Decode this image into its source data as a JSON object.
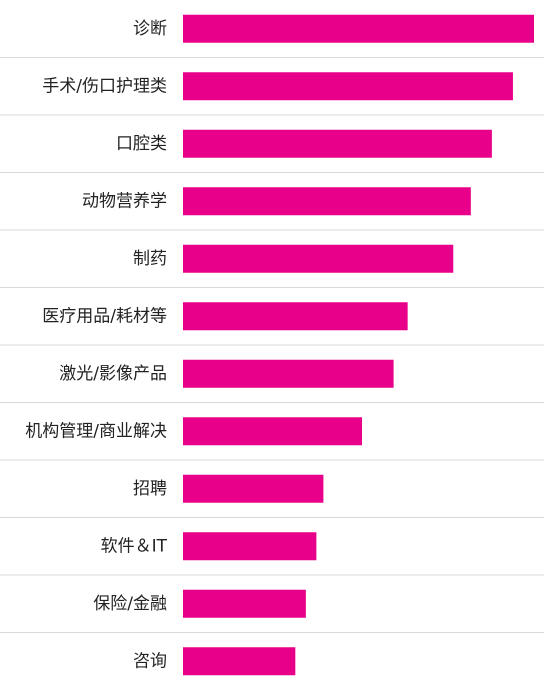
{
  "chart_data": {
    "type": "bar",
    "orientation": "horizontal",
    "categories": [
      "诊断",
      "手术/伤口护理类",
      "口腔类",
      "动物营养学",
      "制药",
      "医疗用品/耗材等",
      "激光/影像产品",
      "机构管理/商业解决",
      "招聘",
      "软件＆IT",
      "保险/金融",
      "咨询"
    ],
    "values": [
      100,
      94,
      88,
      82,
      77,
      64,
      60,
      51,
      40,
      38,
      35,
      32
    ],
    "xlim": [
      0,
      100
    ],
    "grid": false,
    "legend": false,
    "bar_color": "#e8008a",
    "separator_color": "#d9d9d9"
  }
}
